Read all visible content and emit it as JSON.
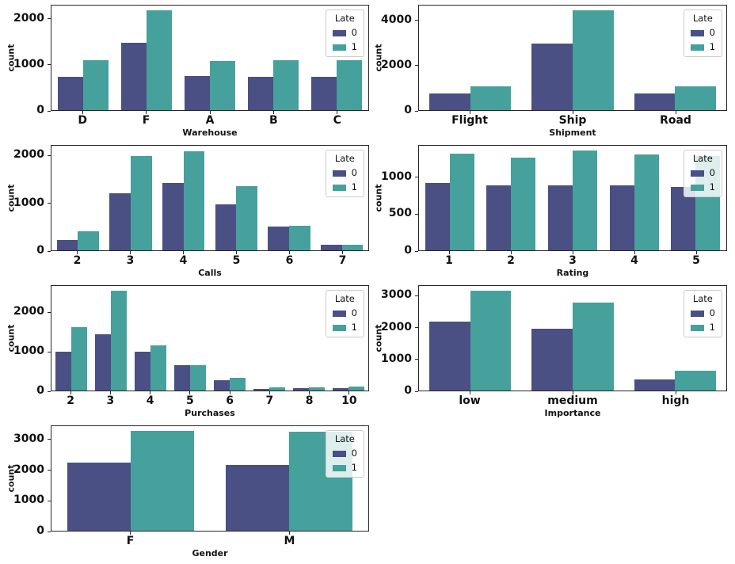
{
  "figure": {
    "kind": "seaborn-countplot-grid",
    "rows": 4,
    "cols": 2,
    "background": "#ffffff"
  },
  "colors": {
    "late0": "#4A5083",
    "late1": "#46A09C",
    "spine": "#262626",
    "legend_border": "#cccccc"
  },
  "legend": {
    "title": "Late",
    "entries": [
      "0",
      "1"
    ],
    "position": "upper right"
  },
  "chart_data": [
    {
      "type": "bar",
      "title": "",
      "xlabel": "Warehouse",
      "ylabel": "count",
      "categories": [
        "D",
        "F",
        "A",
        "B",
        "C"
      ],
      "series": [
        {
          "name": "0",
          "values": [
            740,
            1480,
            760,
            740,
            740
          ]
        },
        {
          "name": "1",
          "values": [
            1110,
            2200,
            1080,
            1110,
            1110
          ]
        }
      ],
      "yticks": [
        0,
        1000,
        2000
      ],
      "ylim": [
        0,
        2310
      ],
      "grid": false,
      "legend_visible": true
    },
    {
      "type": "bar",
      "title": "",
      "xlabel": "Shipment",
      "ylabel": "count",
      "categories": [
        "Flight",
        "Ship",
        "Road"
      ],
      "series": [
        {
          "name": "0",
          "values": [
            750,
            3000,
            750
          ]
        },
        {
          "name": "1",
          "values": [
            1080,
            4460,
            1060
          ]
        }
      ],
      "yticks": [
        0,
        2000,
        4000
      ],
      "ylim": [
        0,
        4690
      ],
      "grid": false,
      "legend_visible": true
    },
    {
      "type": "bar",
      "title": "",
      "xlabel": "Calls",
      "ylabel": "count",
      "categories": [
        "2",
        "3",
        "4",
        "5",
        "6",
        "7"
      ],
      "series": [
        {
          "name": "0",
          "values": [
            220,
            1210,
            1430,
            970,
            500,
            120
          ]
        },
        {
          "name": "1",
          "values": [
            410,
            2010,
            2110,
            1370,
            530,
            120
          ]
        }
      ],
      "yticks": [
        0,
        1000,
        2000
      ],
      "ylim": [
        0,
        2220
      ],
      "grid": false,
      "legend_visible": true
    },
    {
      "type": "bar",
      "title": "",
      "xlabel": "Rating",
      "ylabel": "count",
      "categories": [
        "1",
        "2",
        "3",
        "4",
        "5"
      ],
      "series": [
        {
          "name": "0",
          "values": [
            930,
            900,
            890,
            900,
            870
          ]
        },
        {
          "name": "1",
          "values": [
            1330,
            1280,
            1370,
            1320,
            1300
          ]
        }
      ],
      "yticks": [
        0,
        500,
        1000
      ],
      "ylim": [
        0,
        1440
      ],
      "grid": false,
      "legend_visible": true
    },
    {
      "type": "bar",
      "title": "",
      "xlabel": "Purchases",
      "ylabel": "count",
      "categories": [
        "2",
        "3",
        "4",
        "5",
        "6",
        "7",
        "8",
        "10"
      ],
      "series": [
        {
          "name": "0",
          "values": [
            990,
            1440,
            990,
            650,
            260,
            50,
            55,
            70
          ]
        },
        {
          "name": "1",
          "values": [
            1640,
            2560,
            1170,
            650,
            320,
            90,
            90,
            110
          ]
        }
      ],
      "yticks": [
        0,
        1000,
        2000
      ],
      "ylim": [
        0,
        2690
      ],
      "grid": false,
      "legend_visible": true
    },
    {
      "type": "bar",
      "title": "",
      "xlabel": "Importance",
      "ylabel": "count",
      "categories": [
        "low",
        "medium",
        "high"
      ],
      "series": [
        {
          "name": "0",
          "values": [
            2190,
            1960,
            350
          ]
        },
        {
          "name": "1",
          "values": [
            3170,
            2810,
            630
          ]
        }
      ],
      "yticks": [
        0,
        1000,
        2000,
        3000
      ],
      "ylim": [
        0,
        3330
      ],
      "grid": false,
      "legend_visible": true
    },
    {
      "type": "bar",
      "title": "",
      "xlabel": "Gender",
      "ylabel": "count",
      "categories": [
        "F",
        "M"
      ],
      "series": [
        {
          "name": "0",
          "values": [
            2270,
            2190
          ]
        },
        {
          "name": "1",
          "values": [
            3300,
            3270
          ]
        }
      ],
      "yticks": [
        0,
        1000,
        2000,
        3000
      ],
      "ylim": [
        0,
        3465
      ],
      "grid": false,
      "legend_visible": true
    }
  ]
}
